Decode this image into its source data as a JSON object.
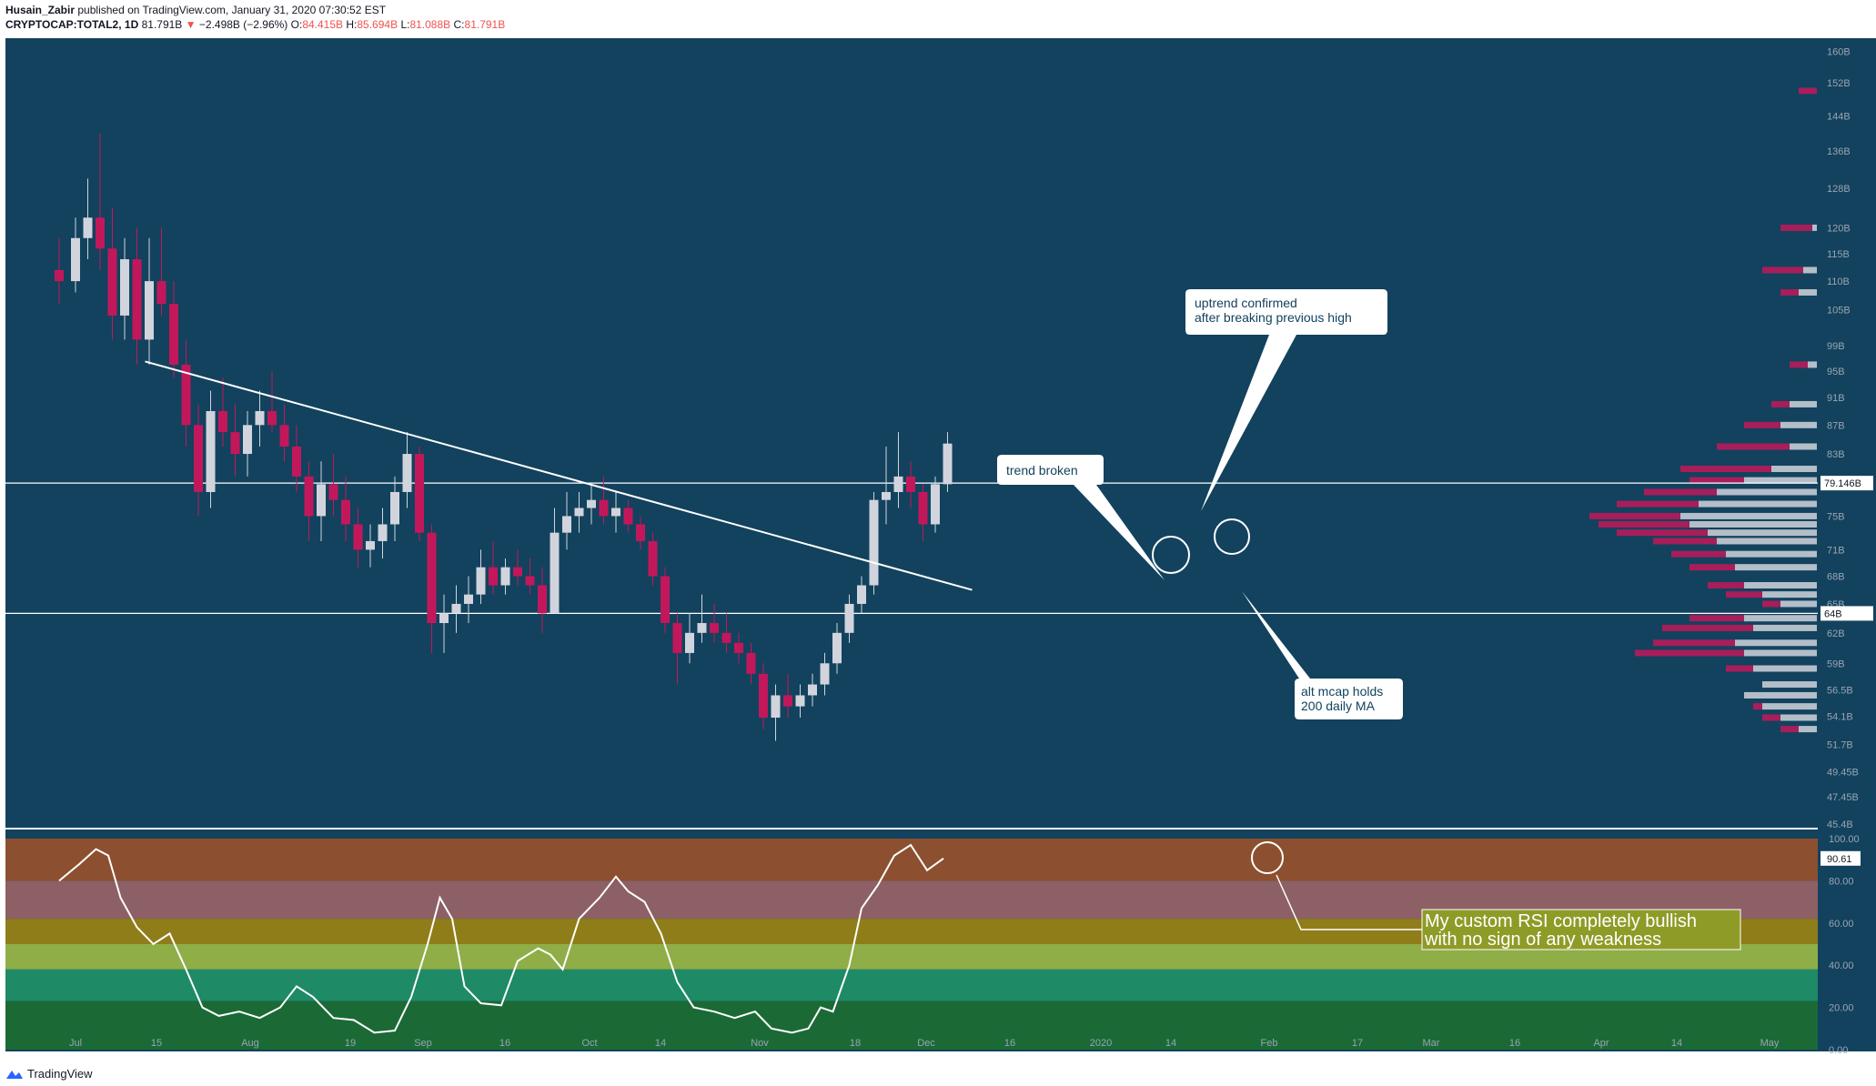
{
  "header": {
    "author": "Husain_Zabir",
    "published_text": "published on TradingView.com, January 31, 2020 07:30:52 EST",
    "symbol": "CRYPTOCAP:TOTAL2, 1D",
    "last": "81.791B",
    "change": "−2.498B (−2.96%)",
    "o_label": "O:",
    "o": "84.415B",
    "h_label": "H:",
    "h": "85.694B",
    "l_label": "L:",
    "l": "81.088B",
    "c_label": "C:",
    "c": "81.791B"
  },
  "footer": {
    "brand": "TradingView"
  },
  "colors": {
    "background": "#12425e",
    "bull": "#d1d4dc",
    "bear": "#c2185b",
    "line": "#ffffff",
    "rsi_bands": [
      "#8c5030",
      "#8d6066",
      "#8f7d19",
      "#8fae48",
      "#1e8a66",
      "#1b6a36"
    ]
  },
  "annotations": {
    "uptrend": [
      "uptrend confirmed",
      "after breaking previous high"
    ],
    "trend_broken": "trend broken",
    "alt_mcap": [
      "alt mcap holds",
      "200 daily MA"
    ],
    "rsi_note": [
      "My custom RSI completely bullish",
      "with no sign of any weakness"
    ]
  },
  "price_labels": {
    "resistance": "79.146B",
    "support": "64B",
    "rsi_current": "90.61"
  },
  "chart_data": [
    {
      "type": "candlestick",
      "title": "CRYPTOCAP:TOTAL2, 1D",
      "y_scale": "log",
      "ylim": [
        45.4,
        162
      ],
      "x_tick_labels": [
        "Jul",
        "15",
        "Aug",
        "19",
        "Sep",
        "16",
        "Oct",
        "14",
        "Nov",
        "18",
        "Dec",
        "16",
        "2020",
        "14",
        "Feb",
        "17",
        "Mar",
        "16",
        "Apr",
        "14",
        "May"
      ],
      "y_tick_labels": [
        "160B",
        "152B",
        "144B",
        "136B",
        "128B",
        "120B",
        "115B",
        "110B",
        "105B",
        "99B",
        "95B",
        "91B",
        "87B",
        "83B",
        "79.146B",
        "75B",
        "71B",
        "68B",
        "65B",
        "64B",
        "62B",
        "59B",
        "56.5B",
        "54.1B",
        "51.7B",
        "49.45B",
        "47.45B",
        "45.4B"
      ],
      "horizontal_lines": [
        79.146,
        64.0
      ],
      "trendline": [
        {
          "date": "2019-07-18",
          "value": 96.5
        },
        {
          "date": "2020-02-05",
          "value": 66.5
        }
      ],
      "ohlc": [
        {
          "date": "2019-06-27",
          "o": 112,
          "h": 118,
          "l": 106,
          "c": 110
        },
        {
          "date": "2019-07-01",
          "o": 110,
          "h": 122,
          "l": 108,
          "c": 118
        },
        {
          "date": "2019-07-04",
          "o": 118,
          "h": 130,
          "l": 114,
          "c": 122
        },
        {
          "date": "2019-07-07",
          "o": 122,
          "h": 140,
          "l": 112,
          "c": 116
        },
        {
          "date": "2019-07-10",
          "o": 116,
          "h": 124,
          "l": 100,
          "c": 104
        },
        {
          "date": "2019-07-13",
          "o": 104,
          "h": 118,
          "l": 100,
          "c": 114
        },
        {
          "date": "2019-07-16",
          "o": 114,
          "h": 120,
          "l": 96,
          "c": 100
        },
        {
          "date": "2019-07-19",
          "o": 100,
          "h": 118,
          "l": 96,
          "c": 110
        },
        {
          "date": "2019-07-22",
          "o": 110,
          "h": 120,
          "l": 104,
          "c": 106
        },
        {
          "date": "2019-07-25",
          "o": 106,
          "h": 110,
          "l": 94,
          "c": 96
        },
        {
          "date": "2019-07-28",
          "o": 96,
          "h": 100,
          "l": 84,
          "c": 87
        },
        {
          "date": "2019-07-31",
          "o": 87,
          "h": 90,
          "l": 75,
          "c": 78
        },
        {
          "date": "2019-08-03",
          "o": 78,
          "h": 92,
          "l": 76,
          "c": 89
        },
        {
          "date": "2019-08-06",
          "o": 89,
          "h": 94,
          "l": 84,
          "c": 86
        },
        {
          "date": "2019-08-09",
          "o": 86,
          "h": 90,
          "l": 80,
          "c": 83
        },
        {
          "date": "2019-08-12",
          "o": 83,
          "h": 89,
          "l": 80,
          "c": 87
        },
        {
          "date": "2019-08-15",
          "o": 87,
          "h": 92,
          "l": 84,
          "c": 89
        },
        {
          "date": "2019-08-18",
          "o": 89,
          "h": 95,
          "l": 86,
          "c": 87
        },
        {
          "date": "2019-08-21",
          "o": 87,
          "h": 90,
          "l": 82,
          "c": 84
        },
        {
          "date": "2019-08-24",
          "o": 84,
          "h": 87,
          "l": 78,
          "c": 80
        },
        {
          "date": "2019-08-27",
          "o": 80,
          "h": 82,
          "l": 72,
          "c": 75
        },
        {
          "date": "2019-08-30",
          "o": 75,
          "h": 82,
          "l": 72,
          "c": 79
        },
        {
          "date": "2019-09-02",
          "o": 79,
          "h": 83,
          "l": 75,
          "c": 77
        },
        {
          "date": "2019-09-05",
          "o": 77,
          "h": 80,
          "l": 72,
          "c": 74
        },
        {
          "date": "2019-09-08",
          "o": 74,
          "h": 76,
          "l": 69,
          "c": 71
        },
        {
          "date": "2019-09-11",
          "o": 71,
          "h": 74,
          "l": 69,
          "c": 72
        },
        {
          "date": "2019-09-14",
          "o": 72,
          "h": 76,
          "l": 70,
          "c": 74
        },
        {
          "date": "2019-09-17",
          "o": 74,
          "h": 80,
          "l": 72,
          "c": 78
        },
        {
          "date": "2019-09-20",
          "o": 78,
          "h": 86,
          "l": 76,
          "c": 83
        },
        {
          "date": "2019-09-23",
          "o": 83,
          "h": 84,
          "l": 72,
          "c": 73
        },
        {
          "date": "2019-09-26",
          "o": 73,
          "h": 74,
          "l": 60,
          "c": 63
        },
        {
          "date": "2019-09-29",
          "o": 63,
          "h": 66,
          "l": 60,
          "c": 64
        },
        {
          "date": "2019-10-02",
          "o": 64,
          "h": 67,
          "l": 62,
          "c": 65
        },
        {
          "date": "2019-10-05",
          "o": 65,
          "h": 68,
          "l": 63,
          "c": 66
        },
        {
          "date": "2019-10-08",
          "o": 66,
          "h": 71,
          "l": 65,
          "c": 69
        },
        {
          "date": "2019-10-11",
          "o": 69,
          "h": 72,
          "l": 66,
          "c": 67
        },
        {
          "date": "2019-10-14",
          "o": 67,
          "h": 70,
          "l": 66,
          "c": 69
        },
        {
          "date": "2019-10-17",
          "o": 69,
          "h": 71,
          "l": 67,
          "c": 68
        },
        {
          "date": "2019-10-20",
          "o": 68,
          "h": 70,
          "l": 66,
          "c": 67
        },
        {
          "date": "2019-10-23",
          "o": 67,
          "h": 69,
          "l": 62,
          "c": 64
        },
        {
          "date": "2019-10-26",
          "o": 64,
          "h": 76,
          "l": 64,
          "c": 73
        },
        {
          "date": "2019-10-29",
          "o": 73,
          "h": 78,
          "l": 71,
          "c": 75
        },
        {
          "date": "2019-11-01",
          "o": 75,
          "h": 78,
          "l": 73,
          "c": 76
        },
        {
          "date": "2019-11-04",
          "o": 76,
          "h": 79,
          "l": 74,
          "c": 77
        },
        {
          "date": "2019-11-07",
          "o": 77,
          "h": 80,
          "l": 74,
          "c": 75
        },
        {
          "date": "2019-11-10",
          "o": 75,
          "h": 78,
          "l": 73,
          "c": 76
        },
        {
          "date": "2019-11-13",
          "o": 76,
          "h": 77,
          "l": 73,
          "c": 74
        },
        {
          "date": "2019-11-16",
          "o": 74,
          "h": 75,
          "l": 71,
          "c": 72
        },
        {
          "date": "2019-11-19",
          "o": 72,
          "h": 73,
          "l": 67,
          "c": 68
        },
        {
          "date": "2019-11-22",
          "o": 68,
          "h": 69,
          "l": 62,
          "c": 63
        },
        {
          "date": "2019-11-25",
          "o": 63,
          "h": 64,
          "l": 57,
          "c": 60
        },
        {
          "date": "2019-11-28",
          "o": 60,
          "h": 64,
          "l": 59,
          "c": 62
        },
        {
          "date": "2019-12-01",
          "o": 62,
          "h": 66,
          "l": 61,
          "c": 63
        },
        {
          "date": "2019-12-04",
          "o": 63,
          "h": 65,
          "l": 61,
          "c": 62
        },
        {
          "date": "2019-12-07",
          "o": 62,
          "h": 64,
          "l": 60,
          "c": 61
        },
        {
          "date": "2019-12-10",
          "o": 61,
          "h": 62,
          "l": 59,
          "c": 60
        },
        {
          "date": "2019-12-13",
          "o": 60,
          "h": 61,
          "l": 57,
          "c": 58
        },
        {
          "date": "2019-12-16",
          "o": 58,
          "h": 59,
          "l": 53,
          "c": 54
        },
        {
          "date": "2019-12-19",
          "o": 54,
          "h": 57,
          "l": 52,
          "c": 56
        },
        {
          "date": "2019-12-22",
          "o": 56,
          "h": 58,
          "l": 54,
          "c": 55
        },
        {
          "date": "2019-12-25",
          "o": 55,
          "h": 57,
          "l": 54,
          "c": 56
        },
        {
          "date": "2019-12-28",
          "o": 56,
          "h": 58,
          "l": 55,
          "c": 57
        },
        {
          "date": "2019-12-31",
          "o": 57,
          "h": 60,
          "l": 56,
          "c": 59
        },
        {
          "date": "2020-01-03",
          "o": 59,
          "h": 63,
          "l": 58,
          "c": 62
        },
        {
          "date": "2020-01-06",
          "o": 62,
          "h": 66,
          "l": 61,
          "c": 65
        },
        {
          "date": "2020-01-09",
          "o": 65,
          "h": 68,
          "l": 64,
          "c": 67
        },
        {
          "date": "2020-01-12",
          "o": 67,
          "h": 78,
          "l": 66,
          "c": 77
        },
        {
          "date": "2020-01-15",
          "o": 77,
          "h": 84,
          "l": 74,
          "c": 78
        },
        {
          "date": "2020-01-18",
          "o": 78,
          "h": 86,
          "l": 76,
          "c": 80
        },
        {
          "date": "2020-01-21",
          "o": 80,
          "h": 82,
          "l": 76,
          "c": 78
        },
        {
          "date": "2020-01-24",
          "o": 78,
          "h": 79,
          "l": 72,
          "c": 74
        },
        {
          "date": "2020-01-27",
          "o": 74,
          "h": 80,
          "l": 73,
          "c": 79
        },
        {
          "date": "2020-01-30",
          "o": 79,
          "h": 86,
          "l": 78,
          "c": 84.415
        }
      ]
    },
    {
      "type": "line",
      "title": "RSI",
      "ylim": [
        0,
        100
      ],
      "y_tick_labels": [
        "100.00",
        "80.00",
        "60.00",
        "40.00",
        "20.00",
        "0.00"
      ],
      "bands": [
        100,
        80,
        62,
        50,
        38,
        23,
        0
      ],
      "series": [
        {
          "values": [
            {
              "date": "2019-06-27",
              "v": 80
            },
            {
              "date": "2019-07-02",
              "v": 88
            },
            {
              "date": "2019-07-06",
              "v": 95
            },
            {
              "date": "2019-07-09",
              "v": 92
            },
            {
              "date": "2019-07-12",
              "v": 72
            },
            {
              "date": "2019-07-16",
              "v": 58
            },
            {
              "date": "2019-07-20",
              "v": 50
            },
            {
              "date": "2019-07-24",
              "v": 55
            },
            {
              "date": "2019-07-28",
              "v": 38
            },
            {
              "date": "2019-08-01",
              "v": 20
            },
            {
              "date": "2019-08-05",
              "v": 16
            },
            {
              "date": "2019-08-10",
              "v": 18
            },
            {
              "date": "2019-08-15",
              "v": 15
            },
            {
              "date": "2019-08-20",
              "v": 20
            },
            {
              "date": "2019-08-24",
              "v": 30
            },
            {
              "date": "2019-08-28",
              "v": 25
            },
            {
              "date": "2019-09-02",
              "v": 15
            },
            {
              "date": "2019-09-07",
              "v": 14
            },
            {
              "date": "2019-09-12",
              "v": 8
            },
            {
              "date": "2019-09-17",
              "v": 9
            },
            {
              "date": "2019-09-21",
              "v": 25
            },
            {
              "date": "2019-09-25",
              "v": 50
            },
            {
              "date": "2019-09-28",
              "v": 72
            },
            {
              "date": "2019-10-01",
              "v": 62
            },
            {
              "date": "2019-10-04",
              "v": 30
            },
            {
              "date": "2019-10-08",
              "v": 22
            },
            {
              "date": "2019-10-13",
              "v": 21
            },
            {
              "date": "2019-10-17",
              "v": 42
            },
            {
              "date": "2019-10-22",
              "v": 48
            },
            {
              "date": "2019-10-25",
              "v": 45
            },
            {
              "date": "2019-10-28",
              "v": 38
            },
            {
              "date": "2019-11-01",
              "v": 62
            },
            {
              "date": "2019-11-06",
              "v": 72
            },
            {
              "date": "2019-11-10",
              "v": 82
            },
            {
              "date": "2019-11-13",
              "v": 75
            },
            {
              "date": "2019-11-17",
              "v": 70
            },
            {
              "date": "2019-11-21",
              "v": 55
            },
            {
              "date": "2019-11-25",
              "v": 32
            },
            {
              "date": "2019-11-29",
              "v": 20
            },
            {
              "date": "2019-12-04",
              "v": 18
            },
            {
              "date": "2019-12-09",
              "v": 15
            },
            {
              "date": "2019-12-14",
              "v": 18
            },
            {
              "date": "2019-12-18",
              "v": 10
            },
            {
              "date": "2019-12-23",
              "v": 8
            },
            {
              "date": "2019-12-27",
              "v": 10
            },
            {
              "date": "2019-12-30",
              "v": 20
            },
            {
              "date": "2020-01-02",
              "v": 18
            },
            {
              "date": "2020-01-06",
              "v": 40
            },
            {
              "date": "2020-01-09",
              "v": 67
            },
            {
              "date": "2020-01-13",
              "v": 78
            },
            {
              "date": "2020-01-17",
              "v": 92
            },
            {
              "date": "2020-01-21",
              "v": 97
            },
            {
              "date": "2020-01-25",
              "v": 85
            },
            {
              "date": "2020-01-29",
              "v": 90.61
            }
          ]
        }
      ]
    }
  ]
}
